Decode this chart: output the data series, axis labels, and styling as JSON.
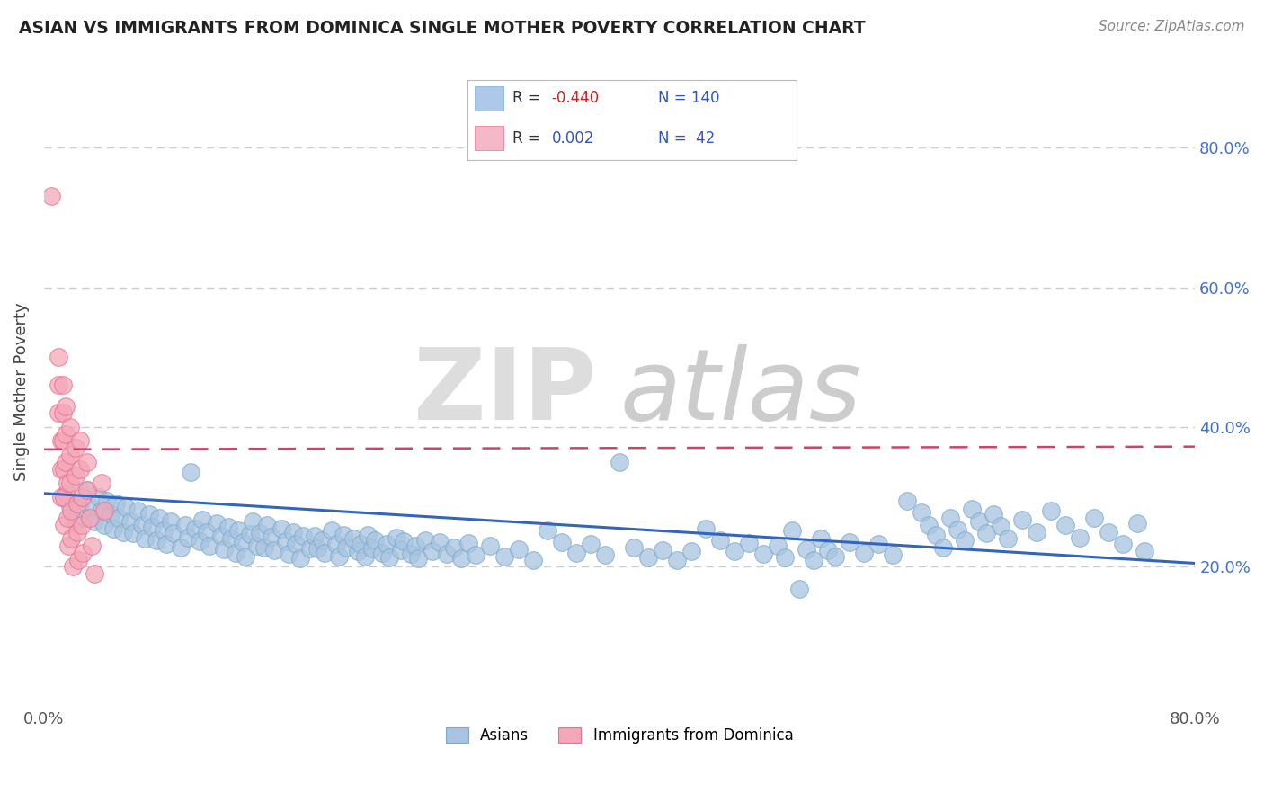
{
  "title": "ASIAN VS IMMIGRANTS FROM DOMINICA SINGLE MOTHER POVERTY CORRELATION CHART",
  "source": "Source: ZipAtlas.com",
  "ylabel": "Single Mother Poverty",
  "xlim": [
    0.0,
    0.8
  ],
  "ylim": [
    0.0,
    0.9
  ],
  "xtick_positions": [
    0.0,
    0.1,
    0.2,
    0.3,
    0.4,
    0.5,
    0.6,
    0.7,
    0.8
  ],
  "xticklabels": [
    "0.0%",
    "",
    "",
    "",
    "",
    "",
    "",
    "",
    "80.0%"
  ],
  "ytick_positions": [
    0.2,
    0.4,
    0.6,
    0.8
  ],
  "ytick_labels": [
    "20.0%",
    "40.0%",
    "60.0%",
    "80.0%"
  ],
  "asian_color": "#a8c4e0",
  "dominica_color": "#f4a7b9",
  "asian_edge_color": "#7aaad0",
  "dominica_edge_color": "#e87090",
  "asian_line_color": "#3366bb",
  "dominica_line_color": "#cc4466",
  "legend_asian_color": "#adc8e8",
  "legend_dominica_color": "#f5b8c8",
  "background_color": "#ffffff",
  "grid_color": "#cccccc",
  "asian_line_x0": 0.0,
  "asian_line_y0": 0.305,
  "asian_line_x1": 0.8,
  "asian_line_y1": 0.205,
  "dominica_line_x0": 0.0,
  "dominica_line_y0": 0.368,
  "dominica_line_x1": 0.8,
  "dominica_line_y1": 0.372,
  "asian_scatter": [
    [
      0.015,
      0.305
    ],
    [
      0.018,
      0.285
    ],
    [
      0.022,
      0.265
    ],
    [
      0.025,
      0.29
    ],
    [
      0.028,
      0.27
    ],
    [
      0.03,
      0.31
    ],
    [
      0.032,
      0.285
    ],
    [
      0.035,
      0.265
    ],
    [
      0.038,
      0.3
    ],
    [
      0.04,
      0.28
    ],
    [
      0.042,
      0.26
    ],
    [
      0.044,
      0.295
    ],
    [
      0.046,
      0.275
    ],
    [
      0.048,
      0.255
    ],
    [
      0.05,
      0.29
    ],
    [
      0.052,
      0.27
    ],
    [
      0.055,
      0.25
    ],
    [
      0.057,
      0.285
    ],
    [
      0.06,
      0.265
    ],
    [
      0.062,
      0.248
    ],
    [
      0.065,
      0.28
    ],
    [
      0.068,
      0.26
    ],
    [
      0.07,
      0.24
    ],
    [
      0.073,
      0.275
    ],
    [
      0.075,
      0.257
    ],
    [
      0.078,
      0.238
    ],
    [
      0.08,
      0.27
    ],
    [
      0.083,
      0.252
    ],
    [
      0.085,
      0.232
    ],
    [
      0.088,
      0.265
    ],
    [
      0.09,
      0.248
    ],
    [
      0.095,
      0.228
    ],
    [
      0.098,
      0.26
    ],
    [
      0.1,
      0.242
    ],
    [
      0.102,
      0.335
    ],
    [
      0.105,
      0.255
    ],
    [
      0.108,
      0.237
    ],
    [
      0.11,
      0.268
    ],
    [
      0.113,
      0.25
    ],
    [
      0.115,
      0.23
    ],
    [
      0.12,
      0.262
    ],
    [
      0.123,
      0.244
    ],
    [
      0.125,
      0.225
    ],
    [
      0.128,
      0.257
    ],
    [
      0.13,
      0.24
    ],
    [
      0.133,
      0.22
    ],
    [
      0.135,
      0.252
    ],
    [
      0.138,
      0.235
    ],
    [
      0.14,
      0.215
    ],
    [
      0.143,
      0.247
    ],
    [
      0.145,
      0.265
    ],
    [
      0.148,
      0.23
    ],
    [
      0.15,
      0.248
    ],
    [
      0.153,
      0.228
    ],
    [
      0.155,
      0.26
    ],
    [
      0.158,
      0.243
    ],
    [
      0.16,
      0.223
    ],
    [
      0.165,
      0.255
    ],
    [
      0.168,
      0.237
    ],
    [
      0.17,
      0.218
    ],
    [
      0.173,
      0.25
    ],
    [
      0.175,
      0.232
    ],
    [
      0.178,
      0.212
    ],
    [
      0.18,
      0.244
    ],
    [
      0.185,
      0.226
    ],
    [
      0.188,
      0.244
    ],
    [
      0.19,
      0.226
    ],
    [
      0.193,
      0.238
    ],
    [
      0.195,
      0.22
    ],
    [
      0.2,
      0.252
    ],
    [
      0.203,
      0.233
    ],
    [
      0.205,
      0.215
    ],
    [
      0.208,
      0.246
    ],
    [
      0.21,
      0.228
    ],
    [
      0.215,
      0.24
    ],
    [
      0.218,
      0.222
    ],
    [
      0.22,
      0.233
    ],
    [
      0.223,
      0.215
    ],
    [
      0.225,
      0.245
    ],
    [
      0.228,
      0.226
    ],
    [
      0.23,
      0.238
    ],
    [
      0.235,
      0.22
    ],
    [
      0.238,
      0.232
    ],
    [
      0.24,
      0.213
    ],
    [
      0.245,
      0.242
    ],
    [
      0.248,
      0.224
    ],
    [
      0.25,
      0.236
    ],
    [
      0.255,
      0.218
    ],
    [
      0.258,
      0.23
    ],
    [
      0.26,
      0.212
    ],
    [
      0.265,
      0.238
    ],
    [
      0.27,
      0.222
    ],
    [
      0.275,
      0.235
    ],
    [
      0.28,
      0.218
    ],
    [
      0.285,
      0.228
    ],
    [
      0.29,
      0.212
    ],
    [
      0.295,
      0.234
    ],
    [
      0.3,
      0.217
    ],
    [
      0.31,
      0.23
    ],
    [
      0.32,
      0.215
    ],
    [
      0.33,
      0.225
    ],
    [
      0.34,
      0.21
    ],
    [
      0.35,
      0.252
    ],
    [
      0.36,
      0.235
    ],
    [
      0.37,
      0.22
    ],
    [
      0.38,
      0.232
    ],
    [
      0.39,
      0.217
    ],
    [
      0.4,
      0.35
    ],
    [
      0.41,
      0.228
    ],
    [
      0.42,
      0.213
    ],
    [
      0.43,
      0.224
    ],
    [
      0.44,
      0.21
    ],
    [
      0.45,
      0.222
    ],
    [
      0.46,
      0.255
    ],
    [
      0.47,
      0.238
    ],
    [
      0.48,
      0.222
    ],
    [
      0.49,
      0.234
    ],
    [
      0.5,
      0.218
    ],
    [
      0.51,
      0.23
    ],
    [
      0.515,
      0.213
    ],
    [
      0.52,
      0.252
    ],
    [
      0.525,
      0.168
    ],
    [
      0.53,
      0.225
    ],
    [
      0.535,
      0.21
    ],
    [
      0.54,
      0.24
    ],
    [
      0.545,
      0.224
    ],
    [
      0.55,
      0.215
    ],
    [
      0.56,
      0.235
    ],
    [
      0.57,
      0.22
    ],
    [
      0.58,
      0.232
    ],
    [
      0.59,
      0.217
    ],
    [
      0.6,
      0.295
    ],
    [
      0.61,
      0.278
    ],
    [
      0.615,
      0.26
    ],
    [
      0.62,
      0.245
    ],
    [
      0.625,
      0.228
    ],
    [
      0.63,
      0.27
    ],
    [
      0.635,
      0.253
    ],
    [
      0.64,
      0.238
    ],
    [
      0.645,
      0.283
    ],
    [
      0.65,
      0.265
    ],
    [
      0.655,
      0.248
    ],
    [
      0.66,
      0.275
    ],
    [
      0.665,
      0.258
    ],
    [
      0.67,
      0.24
    ],
    [
      0.68,
      0.268
    ],
    [
      0.69,
      0.25
    ],
    [
      0.7,
      0.28
    ],
    [
      0.71,
      0.26
    ],
    [
      0.72,
      0.242
    ],
    [
      0.73,
      0.27
    ],
    [
      0.74,
      0.25
    ],
    [
      0.75,
      0.232
    ],
    [
      0.76,
      0.262
    ],
    [
      0.765,
      0.222
    ]
  ],
  "dominica_scatter": [
    [
      0.005,
      0.73
    ],
    [
      0.01,
      0.5
    ],
    [
      0.01,
      0.46
    ],
    [
      0.01,
      0.42
    ],
    [
      0.012,
      0.38
    ],
    [
      0.012,
      0.34
    ],
    [
      0.012,
      0.3
    ],
    [
      0.013,
      0.46
    ],
    [
      0.013,
      0.42
    ],
    [
      0.013,
      0.38
    ],
    [
      0.014,
      0.34
    ],
    [
      0.014,
      0.3
    ],
    [
      0.014,
      0.26
    ],
    [
      0.015,
      0.43
    ],
    [
      0.015,
      0.39
    ],
    [
      0.015,
      0.35
    ],
    [
      0.016,
      0.32
    ],
    [
      0.016,
      0.27
    ],
    [
      0.017,
      0.23
    ],
    [
      0.018,
      0.4
    ],
    [
      0.018,
      0.36
    ],
    [
      0.018,
      0.32
    ],
    [
      0.019,
      0.28
    ],
    [
      0.019,
      0.24
    ],
    [
      0.02,
      0.2
    ],
    [
      0.022,
      0.37
    ],
    [
      0.022,
      0.33
    ],
    [
      0.023,
      0.29
    ],
    [
      0.023,
      0.25
    ],
    [
      0.024,
      0.21
    ],
    [
      0.025,
      0.38
    ],
    [
      0.025,
      0.34
    ],
    [
      0.026,
      0.3
    ],
    [
      0.026,
      0.26
    ],
    [
      0.027,
      0.22
    ],
    [
      0.03,
      0.35
    ],
    [
      0.03,
      0.31
    ],
    [
      0.032,
      0.27
    ],
    [
      0.033,
      0.23
    ],
    [
      0.035,
      0.19
    ],
    [
      0.04,
      0.32
    ],
    [
      0.042,
      0.28
    ]
  ]
}
